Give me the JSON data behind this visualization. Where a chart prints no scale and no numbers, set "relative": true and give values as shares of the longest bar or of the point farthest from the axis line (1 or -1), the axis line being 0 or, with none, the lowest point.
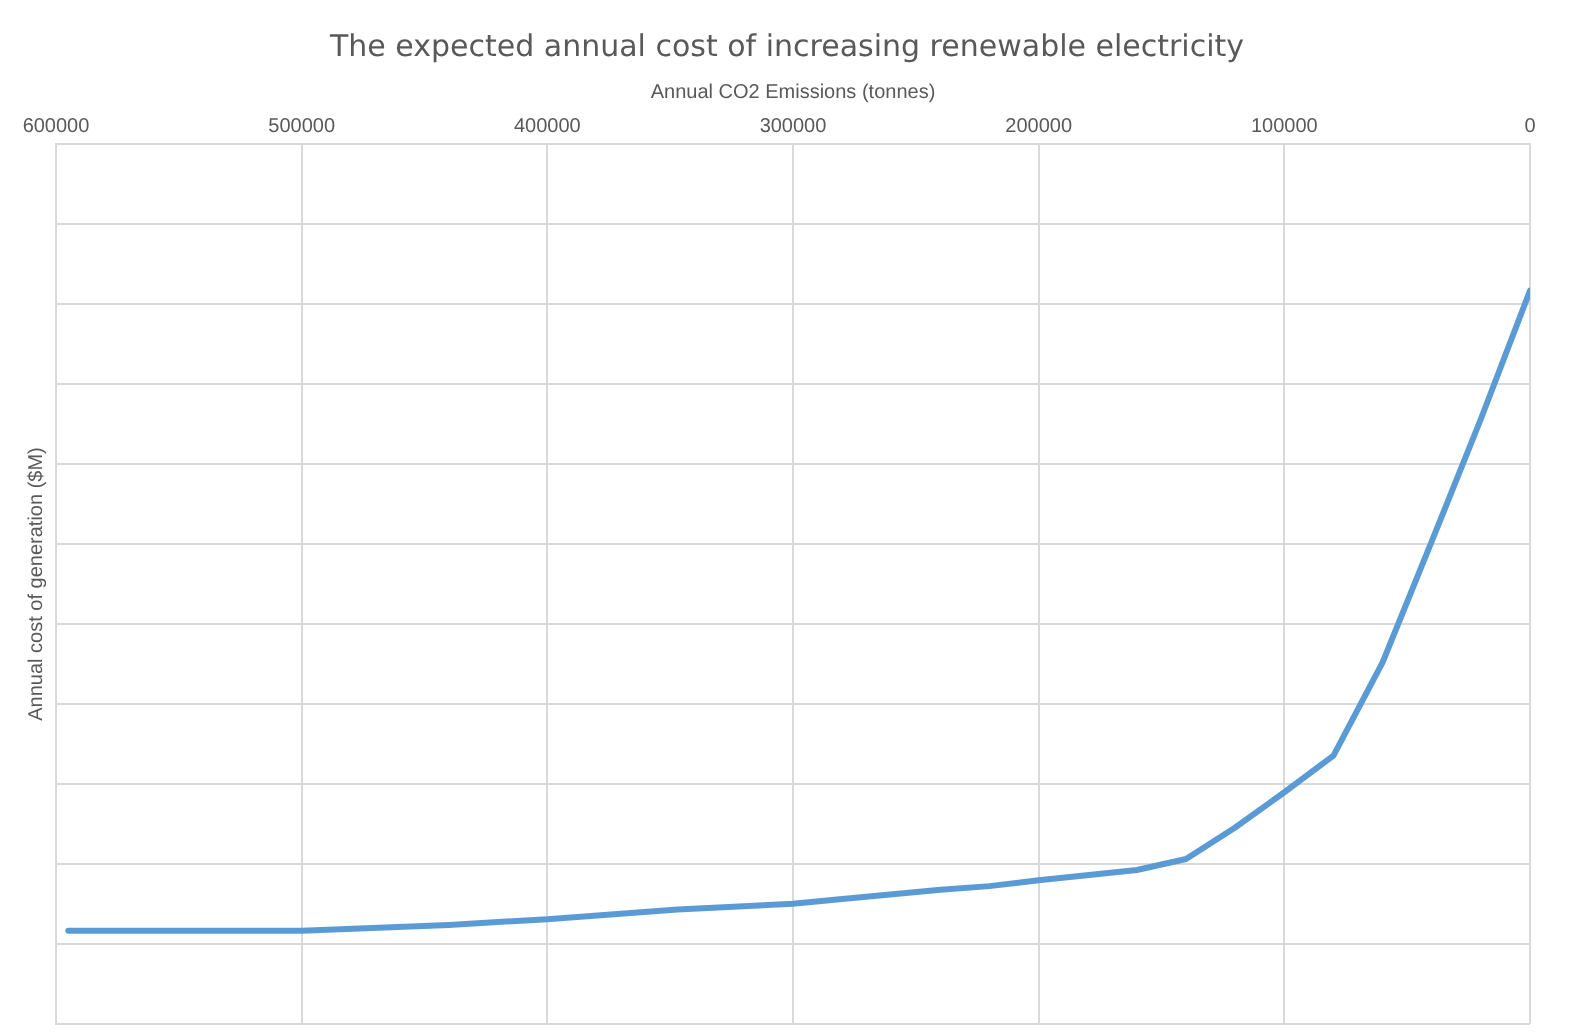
{
  "chart_data": {
    "type": "line",
    "title": "The expected annual cost of increasing renewable electricity",
    "xlabel": "Annual CO2 Emissions (tonnes)",
    "ylabel": "Annual cost of generation ($M)",
    "x": [
      595000,
      500000,
      440000,
      400000,
      347000,
      300000,
      281000,
      240000,
      220000,
      200000,
      160000,
      140000,
      120000,
      100000,
      80000,
      60000,
      40000,
      20000,
      0
    ],
    "series": [
      {
        "color": "#5b9bd5",
        "values": [
          0.127,
          0.127,
          0.135,
          0.143,
          0.156,
          0.164,
          0.17,
          0.183,
          0.188,
          0.196,
          0.21,
          0.225,
          0.268,
          0.316,
          0.366,
          0.493,
          0.658,
          0.825,
          1
        ]
      }
    ],
    "relative": true,
    "xlim": [
      600000,
      0
    ],
    "xticks": [
      600000,
      500000,
      400000,
      300000,
      200000,
      100000,
      0
    ],
    "grid": true,
    "tick_labels": "x",
    "legend": false,
    "marker": "none",
    "line_style": "solid"
  }
}
